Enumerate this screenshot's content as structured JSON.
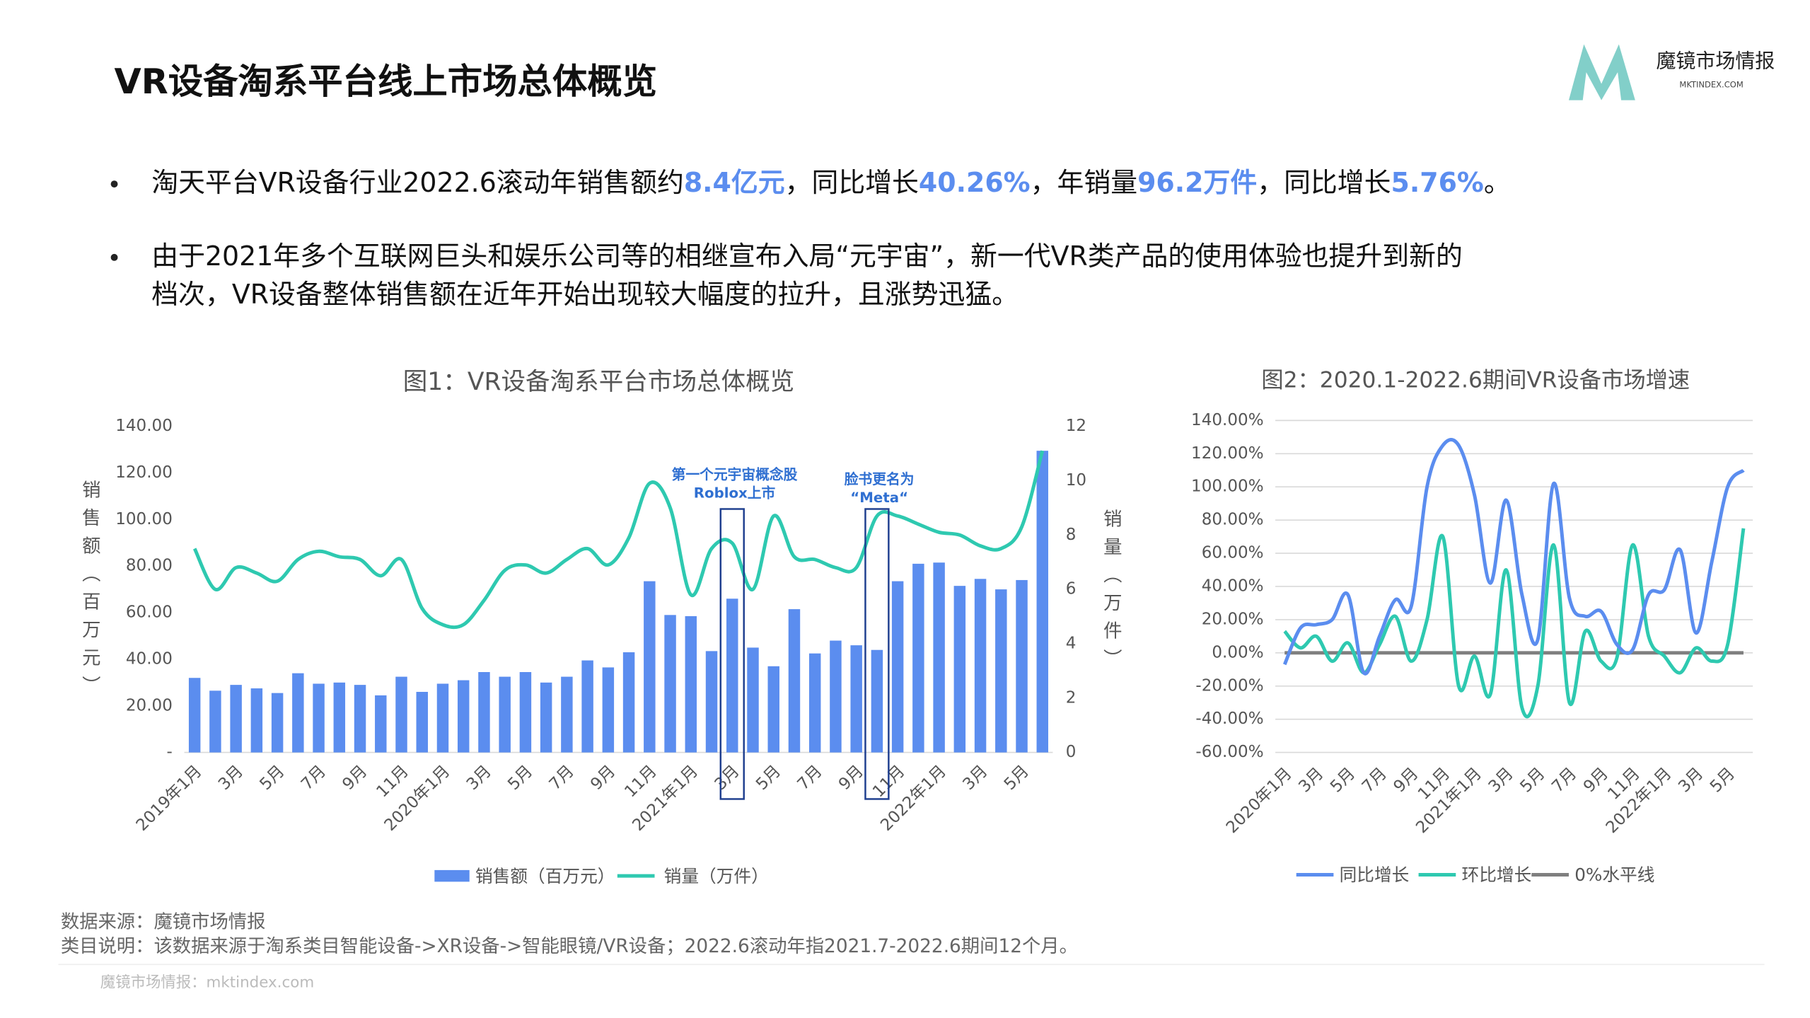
{
  "title": "VR设备淘系平台线上市场总体概览",
  "logo": {
    "name": "魔镜市场情报",
    "url": "MKTINDEX.COM"
  },
  "bullets": [
    {
      "lines": [
        [
          {
            "text": "淘天平台VR设备行业2022.6滚动年销售额约",
            "highlight": false
          },
          {
            "text": "8.4亿元",
            "highlight": true
          },
          {
            "text": "，同比增长",
            "highlight": false
          },
          {
            "text": "40.26%",
            "highlight": true
          },
          {
            "text": "，年销量",
            "highlight": false
          },
          {
            "text": "96.2万件",
            "highlight": true
          },
          {
            "text": "，同比增长",
            "highlight": false
          },
          {
            "text": "5.76%",
            "highlight": true
          },
          {
            "text": "。",
            "highlight": false
          }
        ]
      ]
    },
    {
      "lines": [
        [
          {
            "text": "由于2021年多个互联网巨头和娱乐公司等的相继宣布入局“元宇宙”，新一代VR类产品的使用体验也提升到新的",
            "highlight": false
          }
        ],
        [
          {
            "text": "档次，VR设备整体销售额在近年开始出现较大幅度的拉升，且涨势迅猛。",
            "highlight": false
          }
        ]
      ]
    }
  ],
  "highlight_color": "#5b8def",
  "chart_data": [
    {
      "type": "bar-line",
      "title": "图1：VR设备淘系平台市场总体概览",
      "ylabel": "销售额（百万元）",
      "y2label": "销量（万件）",
      "categories": [
        "2019年1月",
        null,
        "3月",
        null,
        "5月",
        null,
        "7月",
        null,
        "9月",
        null,
        "11月",
        null,
        "2020年1月",
        null,
        "3月",
        null,
        "5月",
        null,
        "7月",
        null,
        "9月",
        null,
        "11月",
        null,
        "2021年1月",
        null,
        "3月",
        null,
        "5月",
        null,
        "7月",
        null,
        "9月",
        null,
        "11月",
        null,
        "2022年1月",
        null,
        "3月",
        null,
        "5月",
        null
      ],
      "series": [
        {
          "name": "销售额（百万元）",
          "kind": "bar",
          "color": "#5b8def",
          "axis": "y",
          "values": [
            32,
            26.5,
            29,
            27.5,
            25.5,
            34,
            29.5,
            30,
            29,
            24.5,
            32.5,
            26,
            29.5,
            31,
            34.5,
            32.5,
            34.5,
            30,
            32.5,
            39.5,
            36.5,
            43,
            73.5,
            59,
            58.5,
            43.5,
            66,
            45,
            37,
            61.5,
            42.5,
            48,
            46,
            44,
            73.5,
            81,
            81.5,
            71.5,
            74.5,
            70,
            74,
            129.5
          ]
        },
        {
          "name": "销量（万件）",
          "kind": "line",
          "color": "#2ec9b0",
          "axis": "y2",
          "values": [
            7.5,
            6.0,
            6.8,
            6.6,
            6.3,
            7.1,
            7.4,
            7.2,
            7.1,
            6.5,
            7.1,
            5.3,
            4.7,
            4.7,
            5.6,
            6.7,
            6.9,
            6.6,
            7.1,
            7.5,
            6.9,
            7.9,
            9.9,
            9.0,
            5.8,
            7.5,
            7.7,
            6.0,
            8.7,
            7.2,
            7.1,
            6.8,
            6.8,
            8.7,
            8.7,
            8.4,
            8.1,
            8.0,
            7.6,
            7.5,
            8.3,
            11.1
          ]
        }
      ],
      "ylim": [
        0,
        140
      ],
      "yticks": [
        {
          "value": 0,
          "label": "-"
        },
        {
          "value": 20,
          "label": "20.00"
        },
        {
          "value": 40,
          "label": "40.00"
        },
        {
          "value": 60,
          "label": "60.00"
        },
        {
          "value": 80,
          "label": "80.00"
        },
        {
          "value": 100,
          "label": "100.00"
        },
        {
          "value": 120,
          "label": "120.00"
        },
        {
          "value": 140,
          "label": "140.00"
        }
      ],
      "y2lim": [
        0,
        12
      ],
      "y2ticks": [
        0,
        2,
        4,
        6,
        8,
        10,
        12
      ],
      "annotations": [
        {
          "lines": [
            "第一个元宇宙概念股",
            "Roblox上市"
          ]
        },
        {
          "lines": [
            "脸书更名为",
            "“Meta“"
          ]
        }
      ],
      "grid": false,
      "legend": "bottom"
    },
    {
      "type": "line",
      "title": "图2：2020.1-2022.6期间VR设备市场增速",
      "categories": [
        "2020年1月",
        null,
        "3月",
        null,
        "5月",
        null,
        "7月",
        null,
        "9月",
        null,
        "11月",
        null,
        "2021年1月",
        null,
        "3月",
        null,
        "5月",
        null,
        "7月",
        null,
        "9月",
        null,
        "11月",
        null,
        "2022年1月",
        null,
        "3月",
        null,
        "5月",
        null
      ],
      "series": [
        {
          "name": "同比增长",
          "color": "#5b8def",
          "values": [
            -7,
            15,
            17,
            20,
            35,
            -12,
            10,
            32,
            28,
            100,
            125,
            125,
            95,
            42,
            92,
            35,
            8,
            102,
            33,
            22,
            25,
            5,
            2,
            35,
            38,
            62,
            12,
            55,
            100,
            110
          ]
        },
        {
          "name": "环比增长",
          "color": "#2ec9b0",
          "values": [
            13,
            3,
            10,
            -5,
            6,
            -12,
            5,
            22,
            -5,
            20,
            70,
            -20,
            -2,
            -25,
            50,
            -33,
            -20,
            65,
            -30,
            13,
            -5,
            -3,
            65,
            10,
            -2,
            -12,
            3,
            -5,
            5,
            75
          ]
        },
        {
          "name": "0%水平线",
          "color": "#7f7f7f",
          "values": [
            0,
            0,
            0,
            0,
            0,
            0,
            0,
            0,
            0,
            0,
            0,
            0,
            0,
            0,
            0,
            0,
            0,
            0,
            0,
            0,
            0,
            0,
            0,
            0,
            0,
            0,
            0,
            0,
            0,
            0
          ]
        }
      ],
      "ylim": [
        -60,
        140
      ],
      "yticks": [
        {
          "value": -60,
          "label": "-60.00%"
        },
        {
          "value": -40,
          "label": "-40.00%"
        },
        {
          "value": -20,
          "label": "-20.00%"
        },
        {
          "value": 0,
          "label": "0.00%"
        },
        {
          "value": 20,
          "label": "20.00%"
        },
        {
          "value": 40,
          "label": "40.00%"
        },
        {
          "value": 60,
          "label": "60.00%"
        },
        {
          "value": 80,
          "label": "80.00%"
        },
        {
          "value": 100,
          "label": "100.00%"
        },
        {
          "value": 120,
          "label": "120.00%"
        },
        {
          "value": 140,
          "label": "140.00%"
        }
      ],
      "grid": true,
      "smooth": true,
      "legend": "bottom"
    }
  ],
  "source": "数据来源：魔镜市场情报",
  "note": "类目说明：该数据来源于淘系类目智能设备->XR设备->智能眼镜/VR设备；2022.6滚动年指2021.7-2022.6期间12个月。",
  "footer": "魔镜市场情报：mktindex.com"
}
